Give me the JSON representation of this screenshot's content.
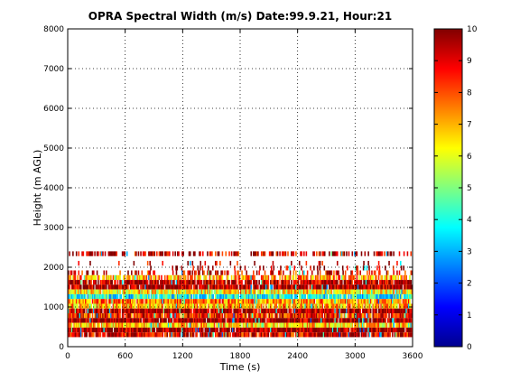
{
  "chart_data": {
    "type": "heatmap",
    "title": "OPRA Spectral Width (m/s)  Date:99.9.21, Hour:21",
    "xlabel": "Time (s)",
    "ylabel": "Height (m AGL)",
    "xlim": [
      0,
      3600
    ],
    "ylim": [
      0,
      8000
    ],
    "xticks": [
      0,
      600,
      1200,
      1800,
      2400,
      3000,
      3600
    ],
    "yticks": [
      0,
      1000,
      2000,
      3000,
      4000,
      5000,
      6000,
      7000,
      8000
    ],
    "grid": true,
    "colorbar": {
      "min": 0,
      "max": 10,
      "ticks": [
        0,
        1,
        2,
        3,
        4,
        5,
        6,
        7,
        8,
        9,
        10
      ],
      "colormap": "jet"
    },
    "layers": [
      {
        "height": 2340,
        "value": 9.3,
        "coverage": 0.55,
        "range": [
          0,
          3600
        ]
      },
      {
        "height": 2100,
        "value": 9.5,
        "coverage": 0.08,
        "range": [
          0,
          3600
        ]
      },
      {
        "height": 1980,
        "value": 9.6,
        "coverage": 0.18,
        "range": [
          800,
          3600
        ]
      },
      {
        "height": 1860,
        "value": 8.8,
        "coverage": 0.35,
        "range": [
          0,
          3600
        ]
      },
      {
        "height": 1740,
        "value": 7.2,
        "coverage": 0.75,
        "range": [
          0,
          3600
        ]
      },
      {
        "height": 1620,
        "value": 9.4,
        "coverage": 0.9,
        "range": [
          0,
          3600
        ]
      },
      {
        "height": 1500,
        "value": 9.6,
        "coverage": 0.95,
        "range": [
          0,
          3600
        ]
      },
      {
        "height": 1380,
        "value": 6.5,
        "coverage": 0.95,
        "range": [
          0,
          3600
        ]
      },
      {
        "height": 1260,
        "value": 4.0,
        "coverage": 0.95,
        "range": [
          0,
          3600
        ]
      },
      {
        "height": 1140,
        "value": 7.5,
        "coverage": 0.95,
        "range": [
          0,
          3600
        ]
      },
      {
        "height": 1020,
        "value": 7.0,
        "coverage": 0.95,
        "range": [
          0,
          3600
        ]
      },
      {
        "height": 900,
        "value": 9.7,
        "coverage": 0.95,
        "range": [
          0,
          3600
        ]
      },
      {
        "height": 780,
        "value": 8.5,
        "coverage": 0.95,
        "range": [
          0,
          3600
        ]
      },
      {
        "height": 660,
        "value": 9.8,
        "coverage": 0.95,
        "range": [
          0,
          3600
        ]
      },
      {
        "height": 540,
        "value": 6.8,
        "coverage": 0.95,
        "range": [
          0,
          3600
        ]
      },
      {
        "height": 420,
        "value": 9.8,
        "coverage": 0.95,
        "range": [
          0,
          3600
        ]
      },
      {
        "height": 300,
        "value": 9.0,
        "coverage": 0.9,
        "range": [
          0,
          3600
        ]
      }
    ]
  }
}
